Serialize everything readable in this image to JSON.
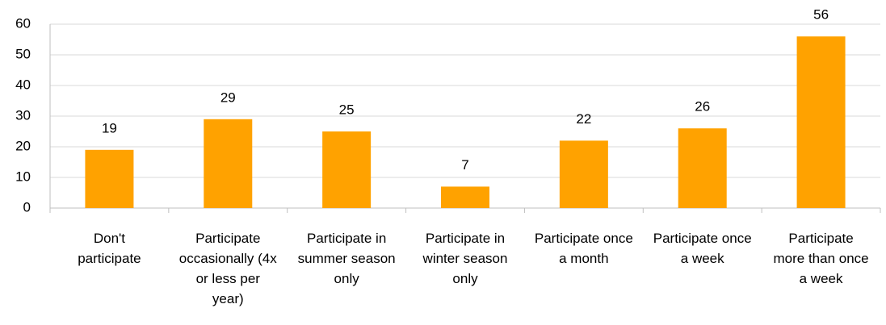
{
  "chart_data": {
    "type": "bar",
    "categories": [
      "Don't participate",
      "Participate occasionally (4x or less per year)",
      "Participate in summer season only",
      "Participate in winter season only",
      "Participate once a month",
      "Participate once a week",
      "Participate more than once a week"
    ],
    "values": [
      19,
      29,
      25,
      7,
      22,
      26,
      56
    ],
    "color": "#ffa200",
    "ylim": [
      0,
      60
    ],
    "yticks": [
      0,
      10,
      20,
      30,
      40,
      50,
      60
    ],
    "grid": true
  }
}
